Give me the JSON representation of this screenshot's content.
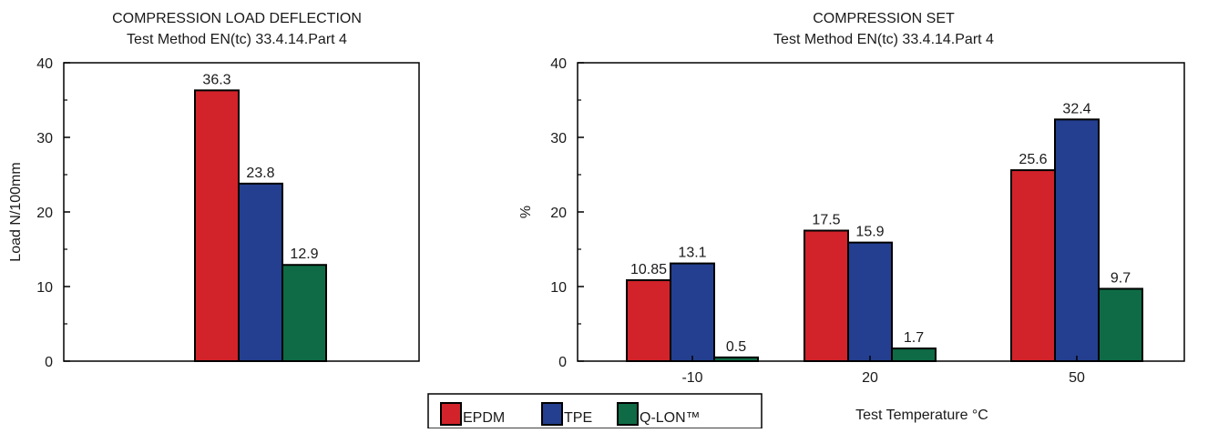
{
  "colors": {
    "EPDM": "#d2232a",
    "TPE": "#243f8f",
    "Q-LON™": "#0e6b45"
  },
  "legend": [
    "EPDM",
    "TPE",
    "Q-LON™"
  ],
  "chart_data": [
    {
      "type": "bar",
      "title": "COMPRESSION LOAD DEFLECTION",
      "subtitle": "Test Method EN(tc) 33.4.14.Part 4",
      "xlabel": "",
      "ylabel": "Load N/100mm",
      "ylim": [
        0,
        40
      ],
      "yticks": [
        0,
        10,
        20,
        30,
        40
      ],
      "categories": [
        ""
      ],
      "series": [
        {
          "name": "EPDM",
          "values": [
            36.3
          ],
          "labels": [
            "36.3"
          ]
        },
        {
          "name": "TPE",
          "values": [
            23.8
          ],
          "labels": [
            "23.8"
          ]
        },
        {
          "name": "Q-LON™",
          "values": [
            12.9
          ],
          "labels": [
            "12.9"
          ]
        }
      ],
      "grid": false
    },
    {
      "type": "bar",
      "title": "COMPRESSION SET",
      "subtitle": "Test Method EN(tc) 33.4.14.Part 4",
      "xlabel": "Test Temperature °C",
      "ylabel": "%",
      "ylim": [
        0,
        40
      ],
      "yticks": [
        0,
        10,
        20,
        30,
        40
      ],
      "categories": [
        "-10",
        "20",
        "50"
      ],
      "series": [
        {
          "name": "EPDM",
          "values": [
            10.85,
            17.5,
            25.6
          ],
          "labels": [
            "10.85",
            "17.5",
            "25.6"
          ]
        },
        {
          "name": "TPE",
          "values": [
            13.1,
            15.9,
            32.4
          ],
          "labels": [
            "13.1",
            "15.9",
            "32.4"
          ]
        },
        {
          "name": "Q-LON™",
          "values": [
            0.5,
            1.7,
            9.7
          ],
          "labels": [
            "0.5",
            "1.7",
            "9.7"
          ]
        }
      ],
      "grid": false
    }
  ]
}
